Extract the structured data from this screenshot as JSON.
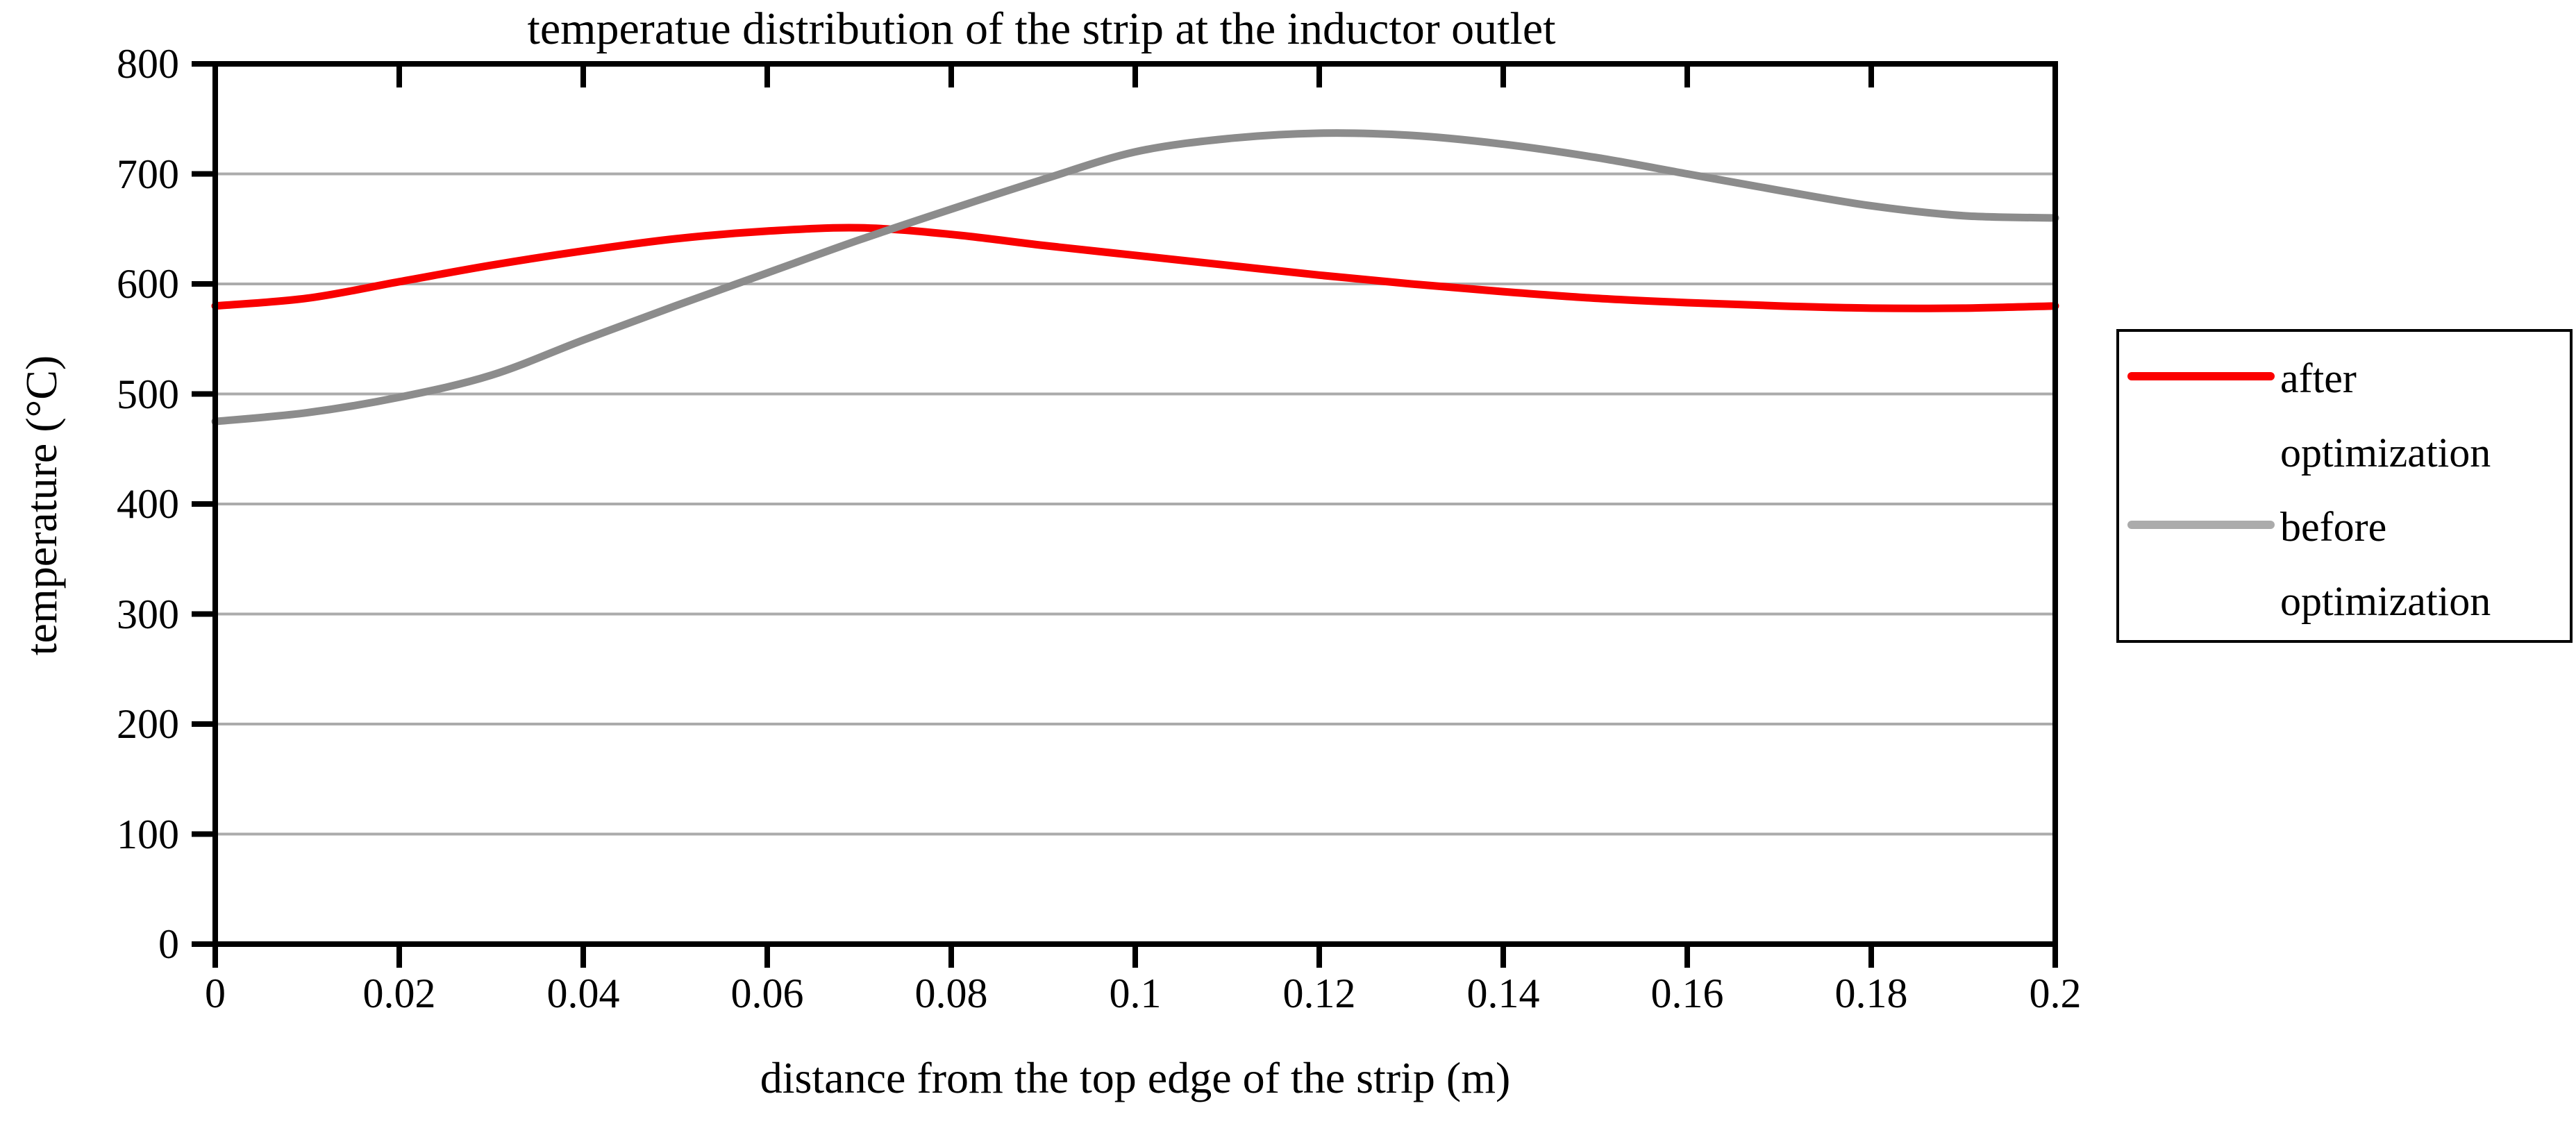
{
  "chart_data": {
    "type": "line",
    "title": "temperatue distribution of the strip at the inductor outlet",
    "xlabel": "distance from the top edge of the strip (m)",
    "ylabel": "temperature (°C)",
    "xlim": [
      0,
      0.2
    ],
    "ylim": [
      0,
      800
    ],
    "x_ticks": [
      0,
      0.02,
      0.04,
      0.06,
      0.08,
      0.1,
      0.12,
      0.14,
      0.16,
      0.18,
      0.2
    ],
    "x_tick_labels": [
      "0",
      "0.02",
      "0.04",
      "0.06",
      "0.08",
      "0.1",
      "0.12",
      "0.14",
      "0.16",
      "0.18",
      "0.2"
    ],
    "y_ticks": [
      0,
      100,
      200,
      300,
      400,
      500,
      600,
      700,
      800
    ],
    "y_tick_labels": [
      "0",
      "100",
      "200",
      "300",
      "400",
      "500",
      "600",
      "700",
      "800"
    ],
    "grid": "horizontal-only",
    "gridline_color": "#ababab",
    "frame_color": "#000000",
    "legend_position": "right-outside",
    "x": [
      0,
      0.01,
      0.02,
      0.03,
      0.04,
      0.05,
      0.06,
      0.07,
      0.08,
      0.09,
      0.1,
      0.11,
      0.12,
      0.13,
      0.14,
      0.15,
      0.16,
      0.17,
      0.18,
      0.19,
      0.2
    ],
    "series": [
      {
        "name": "after optimization",
        "color": "#f90000",
        "values": [
          580,
          587,
          602,
          617,
          630,
          641,
          648,
          651,
          645,
          635,
          626,
          617,
          608,
          600,
          593,
          587,
          583,
          580,
          578,
          578,
          580
        ]
      },
      {
        "name": "before optimization",
        "color": "#8c8c8c",
        "values": [
          475,
          483,
          497,
          517,
          549,
          580,
          610,
          640,
          668,
          695,
          720,
          732,
          737,
          735,
          727,
          715,
          700,
          685,
          671,
          662,
          660
        ]
      }
    ]
  },
  "legend": {
    "entries": [
      {
        "label": "after optimization",
        "sample_color": "#fb0000"
      },
      {
        "label": "before optimization",
        "sample_color": "#ababab"
      }
    ]
  }
}
